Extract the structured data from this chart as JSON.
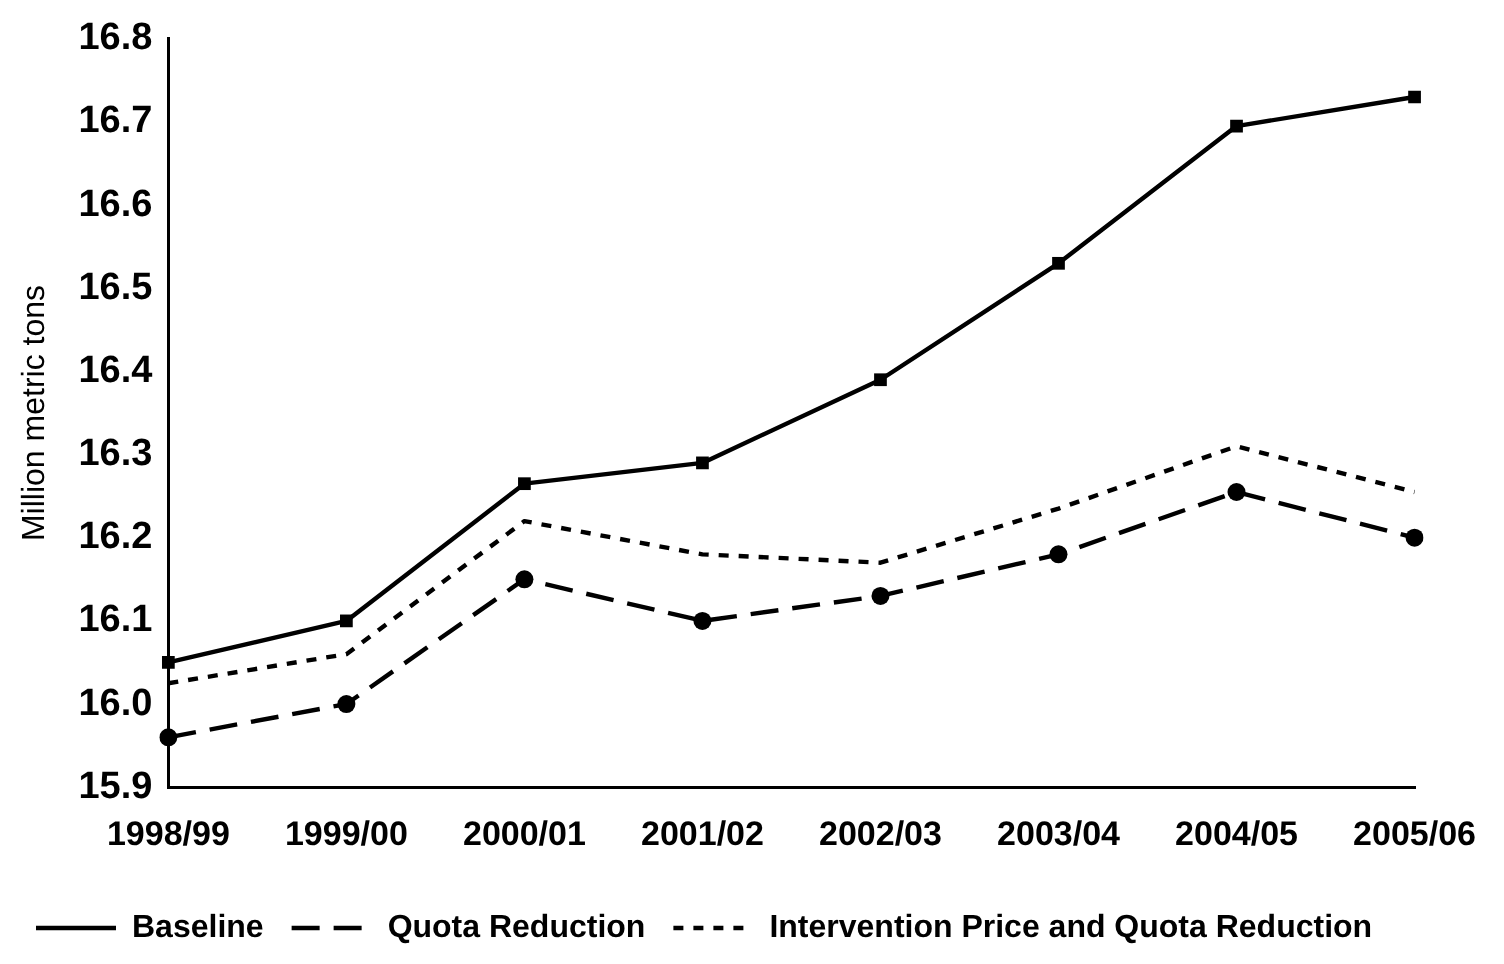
{
  "chart_data": {
    "type": "line",
    "ylabel": "Million metric tons",
    "categories": [
      "1998/99",
      "1999/00",
      "2000/01",
      "2001/02",
      "2002/03",
      "2003/04",
      "2004/05",
      "2005/06"
    ],
    "series": [
      {
        "name": "Baseline",
        "color": "#000000",
        "marker": "square",
        "line_style": "solid",
        "values": [
          16.05,
          16.1,
          16.265,
          16.29,
          16.39,
          16.53,
          16.695,
          16.73
        ]
      },
      {
        "name": "Quota Reduction",
        "color": "#000000",
        "marker": "circle",
        "line_style": "dashed",
        "values": [
          15.96,
          16.0,
          16.15,
          16.1,
          16.13,
          16.18,
          16.255,
          16.2
        ]
      },
      {
        "name": "Intervention Price and Quota Reduction",
        "color": "#000000",
        "marker": "none",
        "line_style": "dotted",
        "values": [
          16.025,
          16.06,
          16.22,
          16.18,
          16.17,
          16.235,
          16.31,
          16.255
        ]
      }
    ],
    "ylim": [
      15.9,
      16.8
    ],
    "yticks": [
      15.9,
      {
        "value": 16.0,
        "label": "16.0"
      },
      16.1,
      16.2,
      16.3,
      16.4,
      16.5,
      16.6,
      16.7,
      16.8
    ],
    "grid": false,
    "legend": "bottom"
  }
}
